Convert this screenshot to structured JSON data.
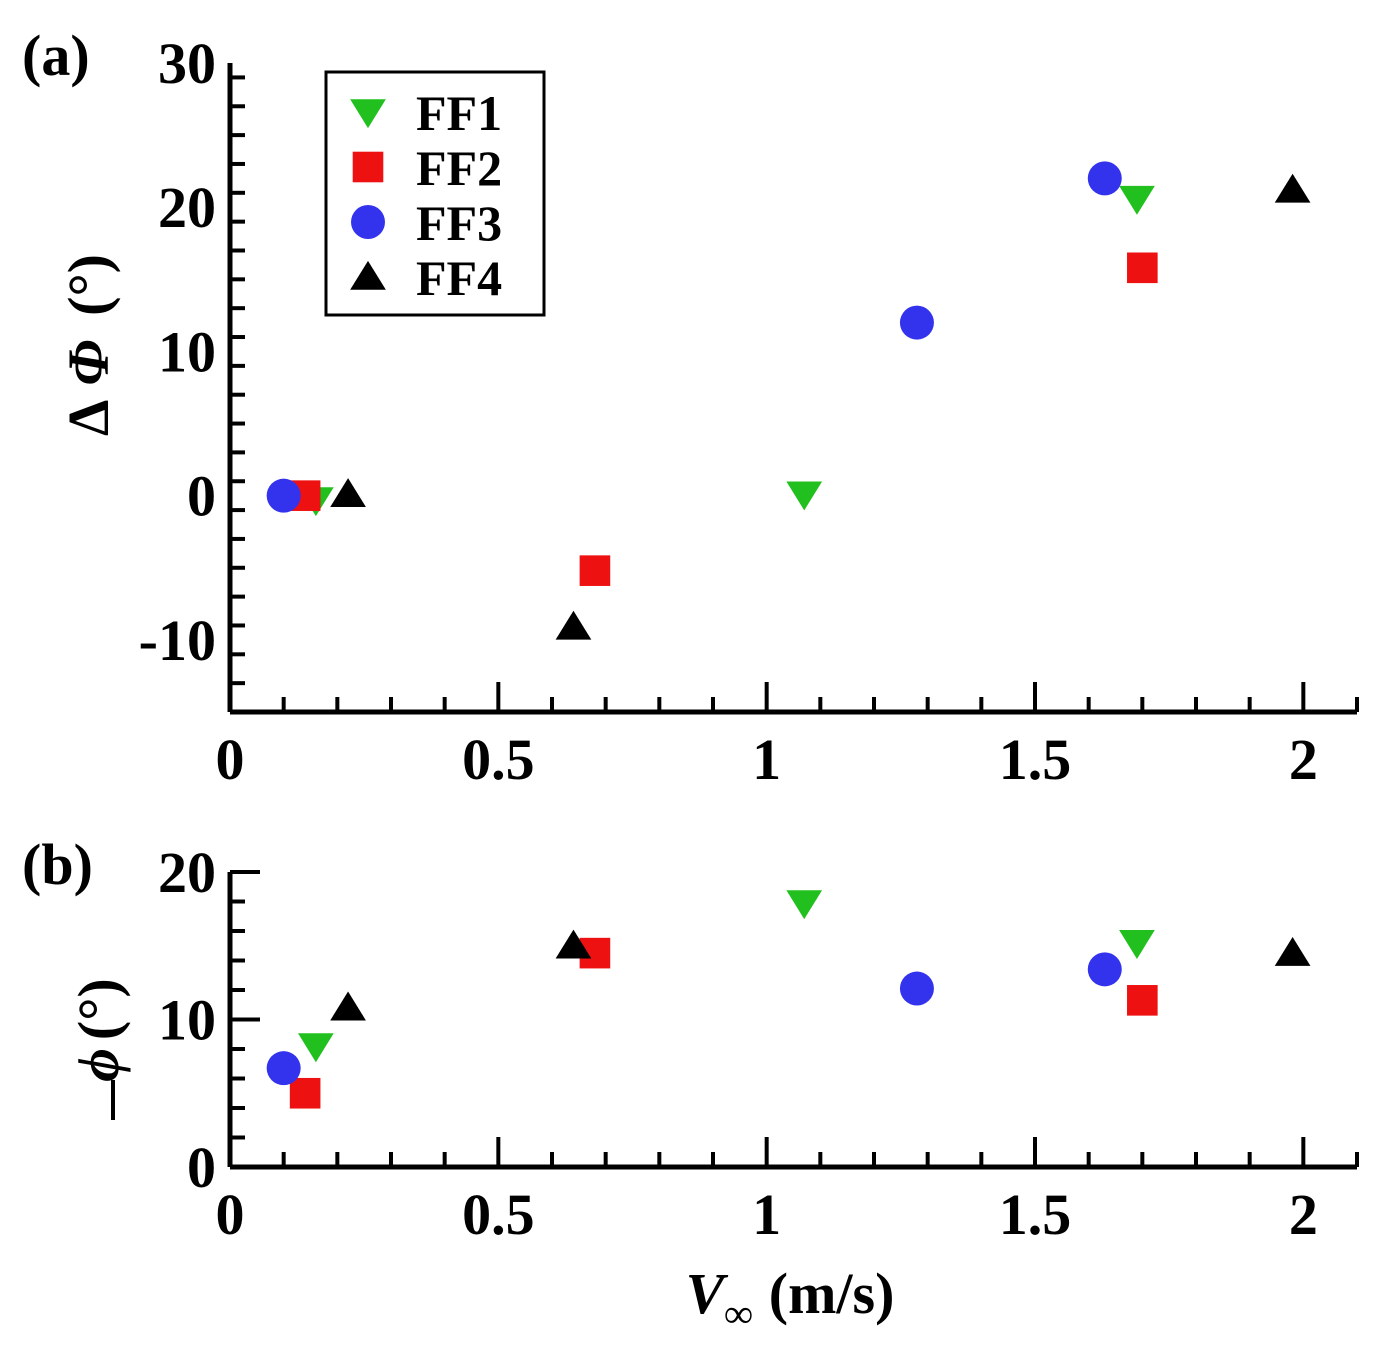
{
  "colors": {
    "FF1": "#22c01e",
    "FF2": "#ee1111",
    "FF3": "#3333ee",
    "FF4": "#000000"
  },
  "chart_data": [
    {
      "type": "scatter",
      "panel_label": "(a)",
      "ylabel_main": "Δ",
      "ylabel_symbol": "Φ",
      "ylabel_unit": "(°)",
      "xlabel": "",
      "xlim": [
        0,
        2.1
      ],
      "ylim": [
        -15,
        30
      ],
      "xticks": [
        0,
        0.5,
        1,
        1.5,
        2
      ],
      "xtick_labels": [
        "0",
        "0.5",
        "1",
        "1.5",
        "2"
      ],
      "yticks": [
        -10,
        0,
        10,
        20,
        30
      ],
      "ytick_labels": [
        "-10",
        "0",
        "10",
        "20",
        "30"
      ],
      "legend": {
        "position": "top-left",
        "entries": [
          "FF1",
          "FF2",
          "FF3",
          "FF4"
        ]
      },
      "series": [
        {
          "name": "FF1",
          "marker": "triangle-down",
          "x": [
            0.16,
            1.07,
            1.69
          ],
          "y": [
            -0.3,
            0.1,
            20.6
          ]
        },
        {
          "name": "FF2",
          "marker": "square",
          "x": [
            0.14,
            0.68,
            1.7
          ],
          "y": [
            0.0,
            -5.2,
            15.8
          ]
        },
        {
          "name": "FF3",
          "marker": "circle",
          "x": [
            0.1,
            1.28,
            1.63
          ],
          "y": [
            0.0,
            12.0,
            22.0
          ]
        },
        {
          "name": "FF4",
          "marker": "triangle-up",
          "x": [
            0.22,
            0.64,
            1.98
          ],
          "y": [
            0.1,
            -9.1,
            21.2
          ]
        }
      ]
    },
    {
      "type": "scatter",
      "panel_label": "(b)",
      "ylabel_symbol": "ϕ",
      "ylabel_unit": "(°)",
      "xlabel_symbol": "V",
      "xlabel_sub": "∞",
      "xlabel_unit": "(m/s)",
      "xlim": [
        0,
        2.1
      ],
      "ylim": [
        0,
        20
      ],
      "xticks": [
        0,
        0.5,
        1,
        1.5,
        2
      ],
      "xtick_labels": [
        "0",
        "0.5",
        "1",
        "1.5",
        "2"
      ],
      "yticks": [
        0,
        10,
        20
      ],
      "ytick_labels": [
        "0",
        "10",
        "20"
      ],
      "series": [
        {
          "name": "FF1",
          "marker": "triangle-down",
          "x": [
            0.16,
            1.07,
            1.69
          ],
          "y": [
            8.2,
            17.9,
            15.2
          ]
        },
        {
          "name": "FF2",
          "marker": "square",
          "x": [
            0.14,
            0.68,
            1.7
          ],
          "y": [
            5.0,
            14.5,
            11.3
          ]
        },
        {
          "name": "FF3",
          "marker": "circle",
          "x": [
            0.1,
            1.28,
            1.63
          ],
          "y": [
            6.7,
            12.1,
            13.4
          ]
        },
        {
          "name": "FF4",
          "marker": "triangle-up",
          "x": [
            0.22,
            0.64,
            1.98
          ],
          "y": [
            10.8,
            15.0,
            14.5
          ]
        }
      ]
    }
  ]
}
